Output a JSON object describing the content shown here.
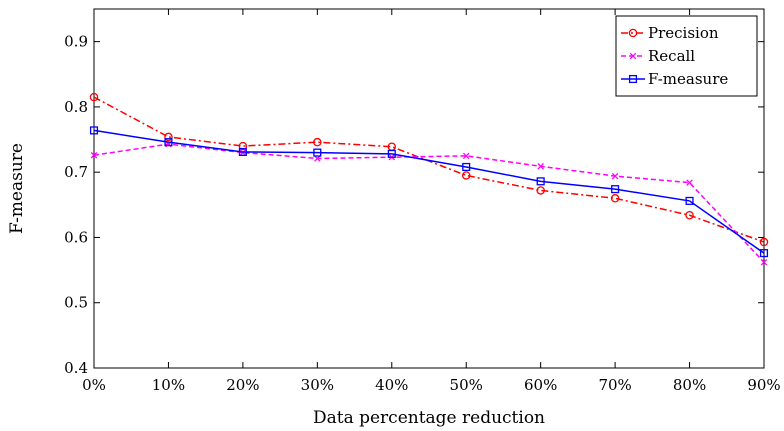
{
  "chart_data": {
    "type": "line",
    "title": "",
    "xlabel": "Data percentage reduction",
    "ylabel": "F-measure",
    "categories": [
      "0%",
      "10%",
      "20%",
      "30%",
      "40%",
      "50%",
      "60%",
      "70%",
      "80%",
      "90%"
    ],
    "x": [
      0,
      10,
      20,
      30,
      40,
      50,
      60,
      70,
      80,
      90
    ],
    "xlim": [
      0,
      90
    ],
    "ylim": [
      0.4,
      0.95
    ],
    "yticks": [
      0.4,
      0.5,
      0.6,
      0.7,
      0.8,
      0.9
    ],
    "ytick_labels": [
      "0.4",
      "0.5",
      "0.6",
      "0.7",
      "0.8",
      "0.9"
    ],
    "grid": false,
    "legend_position": "top-right",
    "series": [
      {
        "name": "Precision",
        "values": [
          0.815,
          0.754,
          0.74,
          0.746,
          0.739,
          0.695,
          0.672,
          0.66,
          0.634,
          0.593
        ],
        "color": "#ff0000",
        "line_style": "dash-dot",
        "marker": "circle"
      },
      {
        "name": "Recall",
        "values": [
          0.726,
          0.743,
          0.73,
          0.721,
          0.723,
          0.725,
          0.709,
          0.694,
          0.684,
          0.562
        ],
        "color": "#ff00ff",
        "line_style": "dashed",
        "marker": "x"
      },
      {
        "name": "F-measure",
        "values": [
          0.764,
          0.746,
          0.731,
          0.73,
          0.728,
          0.708,
          0.686,
          0.674,
          0.656,
          0.576
        ],
        "color": "#0000ff",
        "line_style": "solid",
        "marker": "square"
      }
    ]
  }
}
